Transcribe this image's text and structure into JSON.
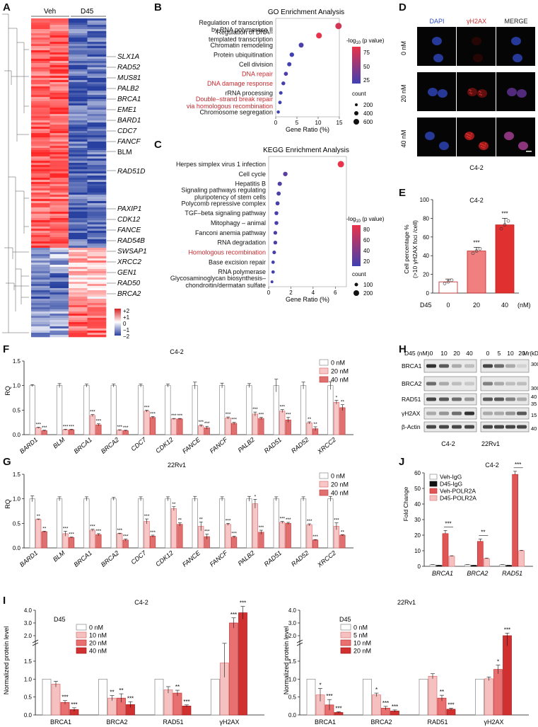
{
  "panels": {
    "A": {
      "letter": "A",
      "groups": [
        "Veh",
        "D45"
      ],
      "genes_italic": [
        "SLX1A",
        "RAD52",
        "MUS81",
        "PALB2",
        "BRCA1",
        "EME1",
        "BARD1",
        "CDC7",
        "FANCF"
      ],
      "gene_blm": "BLM",
      "gene_rad51d": "RAD51D",
      "genes_italic_2": [
        "PAXIP1",
        "CDK12",
        "FANCE",
        "RAD54B",
        "SWSAP1",
        "XRCC2",
        "GEN1",
        "RAD50",
        "BRCA2"
      ],
      "scale_ticks": [
        "+2",
        "+1",
        "0",
        "−1",
        "−2"
      ]
    },
    "B": {
      "letter": "B",
      "title": "GO Enrichment Analysis",
      "xlabel": "Gene Ratio (%)",
      "legend_title_1": "-log",
      "legend_title_1b": "10",
      "legend_title_1c": " (p value)",
      "legend_ticks": [
        "75",
        "50",
        "25"
      ],
      "count_title": "count",
      "count_ticks": [
        "200",
        "400",
        "600"
      ]
    },
    "C": {
      "letter": "C",
      "title": "KEGG Enrichment Analysis",
      "xlabel": "Gene Ratio (%)",
      "legend_ticks": [
        "80",
        "60",
        "40",
        "20"
      ],
      "count_title": "count",
      "count_ticks": [
        "100",
        "200"
      ]
    },
    "D": {
      "letter": "D",
      "cols": [
        "DAPI",
        "γH2AX",
        "MERGE"
      ],
      "rows": [
        "0 nM",
        "20 nM",
        "40 nM"
      ],
      "caption": "C4-2"
    },
    "E": {
      "letter": "E",
      "title": "C4-2",
      "ylabel_1": "Cell percentage %",
      "ylabel_2": "(>10 γH2AX foci /cell)",
      "xprefix": "D45",
      "xunit": "(nM)",
      "sig": [
        "***",
        "***"
      ]
    },
    "F": {
      "letter": "F",
      "title": "C4-2",
      "ylabel": "RQ",
      "legend": [
        "0 nM",
        "20 nM",
        "40 nM"
      ]
    },
    "G": {
      "letter": "G",
      "title": "22Rv1",
      "ylabel": "RQ",
      "legend": [
        "0 nM",
        "20 nM",
        "40 nM"
      ]
    },
    "H": {
      "letter": "H",
      "header": "D45 (nM)",
      "lanes_c42": [
        "0",
        "10",
        "20",
        "40"
      ],
      "lanes_22rv1": [
        "0",
        "5",
        "10",
        "20"
      ],
      "mr": "Mr(kD)",
      "rows": [
        "BRCA1",
        "BRCA2",
        "RAD51",
        "γH2AX",
        "β-Actin"
      ],
      "markers": [
        "300",
        "300",
        "40",
        "35",
        "15",
        "40"
      ],
      "cells": [
        "C4-2",
        "22Rv1"
      ]
    },
    "J": {
      "letter": "J",
      "title": "C4-2",
      "ylabel": "Fold Change",
      "legend": [
        "Veh-IgG",
        "D45-IgG",
        "Veh-POLR2A",
        "D45-POLR2A"
      ],
      "sig": [
        "***",
        "**",
        "***"
      ]
    },
    "I": {
      "letter": "I",
      "ylabel": "Normalized protein level",
      "left": {
        "title": "C4-2",
        "legend_title": "D45",
        "legend": [
          "0 nM",
          "10 nM",
          "20 nM",
          "40 nM"
        ]
      },
      "right": {
        "title": "22Rv1",
        "legend_title": "D45",
        "legend": [
          "0 nM",
          "5 nM",
          "10 nM",
          "20 nM"
        ]
      }
    }
  },
  "chart_data": [
    {
      "id": "B",
      "type": "scatter",
      "title": "GO Enrichment Analysis",
      "xlabel": "Gene Ratio (%)",
      "xlim": [
        0,
        15
      ],
      "xticks": [
        "0",
        "5",
        "10",
        "15"
      ],
      "terms": [
        "Regulation of transcription by RNA polymerase II",
        "Regulation of DNA-templated transcription",
        "Chromatin remodeling",
        "Protein ubiquitination",
        "Cell division",
        "DNA repair",
        "DNA damage response",
        "rRNA processing",
        "Double-strand break repair via homologous recombination",
        "Chromosome segregation"
      ],
      "term_lines": [
        [
          "Regulation of transcription",
          "by RNA polymerase II"
        ],
        [
          "Regulation of DNA–",
          "templated transcription"
        ],
        [
          "Chromatin remodeling"
        ],
        [
          "Protein ubiquitination"
        ],
        [
          "Cell division"
        ],
        [
          "DNA repair"
        ],
        [
          "DNA damage response"
        ],
        [
          "rRNA processing"
        ],
        [
          "Double–strand break repair",
          "via homologous recombination"
        ],
        [
          "Chromosome segregation"
        ]
      ],
      "highlight": [
        false,
        false,
        false,
        false,
        false,
        true,
        true,
        false,
        true,
        false
      ],
      "gene_ratio": [
        14.8,
        10.2,
        6.0,
        3.8,
        3.2,
        2.4,
        1.8,
        1.2,
        1.0,
        0.6
      ],
      "neglog10p": [
        80,
        90,
        15,
        10,
        12,
        15,
        14,
        10,
        10,
        8
      ],
      "count": [
        620,
        430,
        230,
        150,
        120,
        90,
        70,
        45,
        40,
        25
      ]
    },
    {
      "id": "C",
      "type": "scatter",
      "title": "KEGG Enrichment Analysis",
      "xlabel": "Gene Ratio (%)",
      "xlim": [
        0,
        7
      ],
      "xticks": [
        "0",
        "2",
        "4",
        "6"
      ],
      "terms": [
        "Herpes simplex virus 1 infection",
        "Cell cycle",
        "Hepatitis B",
        "Signaling pathways regulating pluripotency of stem cells",
        "Polycomb repressive complex",
        "TGF-beta signaling pathway",
        "Mitophagy - animal",
        "Fanconi anemia pathway",
        "RNA degradation",
        "Homologous recombination",
        "Base excision repair",
        "RNA polymerase",
        "Glycosaminoglycan biosynthesis-chondroitin/dermatan sulfate"
      ],
      "term_lines": [
        [
          "Herpes simplex virus 1 infection"
        ],
        [
          "Cell cycle"
        ],
        [
          "Hepatitis B"
        ],
        [
          "Signaling pathways regulating",
          "pluripotency of stem cells"
        ],
        [
          "Polycomb repressive complex"
        ],
        [
          "TGF–beta signaling pathway"
        ],
        [
          "Mitophagy – animal"
        ],
        [
          "Fanconi anemia pathway"
        ],
        [
          "RNA degradation"
        ],
        [
          "Homologous recombination"
        ],
        [
          "Base excision repair"
        ],
        [
          "RNA polymerase"
        ],
        [
          "Glycosaminoglycan biosynthesis–",
          "chondroitin/dermatan sulfate"
        ]
      ],
      "highlight": [
        false,
        false,
        false,
        false,
        false,
        false,
        false,
        false,
        false,
        true,
        false,
        false,
        false
      ],
      "gene_ratio": [
        6.5,
        1.5,
        1.0,
        0.9,
        0.8,
        0.7,
        0.7,
        0.6,
        0.6,
        0.5,
        0.4,
        0.4,
        0.3
      ],
      "neglog10p": [
        85,
        20,
        15,
        12,
        12,
        12,
        12,
        12,
        12,
        12,
        10,
        10,
        8
      ],
      "count": [
        220,
        60,
        50,
        45,
        40,
        35,
        35,
        30,
        30,
        25,
        20,
        20,
        15
      ]
    },
    {
      "id": "E",
      "type": "bar",
      "categories": [
        "0",
        "20",
        "40"
      ],
      "values": [
        12,
        45,
        73
      ],
      "errors": [
        3,
        4,
        7
      ],
      "ylim": [
        0,
        100
      ],
      "yticks": [
        "0",
        "20",
        "40",
        "60",
        "80",
        "100"
      ],
      "colors": [
        "#ffffff",
        "#f08080",
        "#e03030"
      ]
    },
    {
      "id": "F",
      "type": "bar",
      "title": "C4-2",
      "ylabel": "RQ",
      "ylim": [
        0,
        1.5
      ],
      "yticks": [
        "0.0",
        "0.5",
        "1.0",
        "1.5"
      ],
      "categories": [
        "BARD1",
        "BLM",
        "BRCA1",
        "BRCA2",
        "CDC7",
        "CDK12",
        "FANCE",
        "FANCF",
        "PALB2",
        "RAD51",
        "RAD52",
        "XRCC2"
      ],
      "series": [
        {
          "name": "0 nM",
          "values": [
            1,
            1,
            1,
            1,
            1,
            1,
            1,
            1,
            1,
            1,
            1,
            1
          ],
          "errors": [
            0.02,
            0.04,
            0.03,
            0.03,
            0.03,
            0.03,
            0.07,
            0.05,
            0.04,
            0.13,
            0.07,
            0.08
          ]
        },
        {
          "name": "20 nM",
          "values": [
            0.14,
            0.1,
            0.39,
            0.09,
            0.48,
            0.32,
            0.18,
            0.34,
            0.42,
            0.48,
            0.24,
            0.66
          ],
          "errors": [
            0.01,
            0.01,
            0.02,
            0.01,
            0.02,
            0.01,
            0.02,
            0.02,
            0.04,
            0.03,
            0.02,
            0.04
          ]
        },
        {
          "name": "40 nM",
          "values": [
            0.08,
            0.1,
            0.2,
            0.08,
            0.35,
            0.32,
            0.14,
            0.23,
            0.33,
            0.3,
            0.12,
            0.55
          ],
          "errors": [
            0.01,
            0.01,
            0.02,
            0.01,
            0.02,
            0.01,
            0.03,
            0.02,
            0.02,
            0.05,
            0.04,
            0.06
          ]
        }
      ],
      "sig": [
        [
          "***",
          "***"
        ],
        [
          "***",
          "***"
        ],
        [
          "***",
          "***"
        ],
        [
          "***",
          "***"
        ],
        [
          "***",
          "***"
        ],
        [
          "***",
          "***"
        ],
        [
          "***",
          "***"
        ],
        [
          "***",
          "***"
        ],
        [
          "***",
          "***"
        ],
        [
          "***",
          "***"
        ],
        [
          "**",
          "**"
        ],
        [
          "*",
          "**"
        ]
      ]
    },
    {
      "id": "G",
      "type": "bar",
      "title": "22Rv1",
      "ylabel": "RQ",
      "ylim": [
        0,
        1.5
      ],
      "yticks": [
        "0.0",
        "0.5",
        "1.0",
        "1.5"
      ],
      "categories": [
        "BARD1",
        "BLM",
        "BRCA1",
        "BRCA2",
        "CDC7",
        "CDK12",
        "FANCE",
        "FANCF",
        "PALB2",
        "RAD51",
        "RAD52",
        "XRCC2"
      ],
      "series": [
        {
          "name": "0 nM",
          "values": [
            1,
            1,
            1,
            1,
            1,
            1,
            1,
            1,
            1,
            1,
            1,
            1
          ],
          "errors": [
            0.06,
            0.04,
            0.04,
            0.03,
            0.04,
            0.04,
            0.05,
            0.04,
            0.05,
            0.04,
            0.04,
            0.05
          ]
        },
        {
          "name": "20 nM",
          "values": [
            0.58,
            0.29,
            0.36,
            0.29,
            0.54,
            0.8,
            0.44,
            0.48,
            0.9,
            0.52,
            0.47,
            0.44
          ],
          "errors": [
            0.01,
            0.05,
            0.02,
            0.01,
            0.05,
            0.04,
            0.09,
            0.02,
            0.09,
            0.02,
            0.02,
            0.07
          ]
        },
        {
          "name": "40 nM",
          "values": [
            0.33,
            0.21,
            0.27,
            0.16,
            0.24,
            0.48,
            0.23,
            0.22,
            0.32,
            0.5,
            0.16,
            0.26
          ],
          "errors": [
            0.01,
            0.01,
            0.02,
            0.02,
            0.02,
            0.03,
            0.05,
            0.02,
            0.04,
            0.02,
            0.01,
            0.01
          ]
        }
      ],
      "sig": [
        [
          "**",
          "**"
        ],
        [
          "***",
          "***"
        ],
        [
          "***",
          "***"
        ],
        [
          "***",
          "***"
        ],
        [
          "***",
          "***"
        ],
        [
          "**",
          "**"
        ],
        [
          "**",
          "***"
        ],
        [
          "***",
          "***"
        ],
        [
          "*",
          "***"
        ],
        [
          "***",
          "***"
        ],
        [
          "***",
          "***"
        ],
        [
          "***",
          "**"
        ]
      ]
    },
    {
      "id": "J",
      "type": "bar",
      "title": "C4-2",
      "ylabel": "Fold Change",
      "ylim": [
        0,
        60
      ],
      "yticks": [
        "0",
        "10",
        "20",
        "30",
        "40",
        "50",
        "60"
      ],
      "categories": [
        "BRCA1",
        "BRCA2",
        "RAD51"
      ],
      "series": [
        {
          "name": "Veh-IgG",
          "values": [
            1,
            1,
            1
          ],
          "errors": [
            0.1,
            0.1,
            0.1
          ]
        },
        {
          "name": "D45-IgG",
          "values": [
            0.6,
            0.6,
            0.6
          ],
          "errors": [
            0.1,
            0.1,
            0.1
          ]
        },
        {
          "name": "Veh-POLR2A",
          "values": [
            21,
            16,
            59
          ],
          "errors": [
            2,
            1.5,
            2
          ]
        },
        {
          "name": "D45-POLR2A",
          "values": [
            6.5,
            5,
            10
          ],
          "errors": [
            0.3,
            0.3,
            0.3
          ]
        }
      ],
      "sig": [
        "***",
        "**",
        "***"
      ]
    },
    {
      "id": "I-left",
      "type": "bar",
      "title": "C4-2",
      "ylabel": "Normalized protein level",
      "yticks_low": [
        "0.0",
        "0.5",
        "1.0",
        "1.5"
      ],
      "yticks_high": [
        "2.0",
        "3.0",
        "4.0"
      ],
      "categories": [
        "BRCA1",
        "BRCA2",
        "RAD51",
        "γH2AX"
      ],
      "series": [
        {
          "name": "0 nM",
          "values": [
            1,
            1,
            1,
            1
          ],
          "errors": [
            0,
            0,
            0,
            0
          ]
        },
        {
          "name": "10 nM",
          "values": [
            0.86,
            0.47,
            0.7,
            1.45
          ],
          "errors": [
            0.08,
            0.07,
            0.09,
            0.4
          ]
        },
        {
          "name": "20 nM",
          "values": [
            0.35,
            0.47,
            0.61,
            3.0
          ],
          "errors": [
            0.05,
            0.12,
            0.08,
            0.4
          ]
        },
        {
          "name": "40 nM",
          "values": [
            0.15,
            0.29,
            0.25,
            3.8
          ],
          "errors": [
            0.05,
            0.08,
            0.03,
            0.5
          ]
        }
      ],
      "sig": [
        [
          "",
          "***",
          "***"
        ],
        [
          "**",
          "**",
          "***"
        ],
        [
          "",
          "**",
          "***"
        ],
        [
          "",
          "***",
          "***"
        ]
      ]
    },
    {
      "id": "I-right",
      "type": "bar",
      "title": "22Rv1",
      "ylabel": "Normalized protein level",
      "yticks_low": [
        "0.0",
        "0.5",
        "1.0",
        "1.5"
      ],
      "yticks_high": [
        "2.0",
        "3.0",
        "4.0"
      ],
      "categories": [
        "BRCA1",
        "BRCA2",
        "RAD51",
        "γH2AX"
      ],
      "series": [
        {
          "name": "0 nM",
          "values": [
            1,
            1,
            1,
            1
          ],
          "errors": [
            0,
            0,
            0,
            0
          ]
        },
        {
          "name": "5 nM",
          "values": [
            0.56,
            0.56,
            1.08,
            1.01
          ],
          "errors": [
            0.18,
            0.05,
            0.07,
            0.05
          ]
        },
        {
          "name": "10 nM",
          "values": [
            0.28,
            0.19,
            0.47,
            1.27
          ],
          "errors": [
            0.15,
            0.05,
            0.08,
            0.12
          ]
        },
        {
          "name": "20 nM",
          "values": [
            0.07,
            0.11,
            0.16,
            2.0
          ],
          "errors": [
            0.02,
            0.03,
            0.03,
            0.2
          ]
        }
      ],
      "sig": [
        [
          "*",
          "***",
          "***"
        ],
        [
          "*",
          "***",
          "***"
        ],
        [
          "",
          "**",
          "***"
        ],
        [
          "",
          "*",
          "***"
        ]
      ]
    }
  ]
}
